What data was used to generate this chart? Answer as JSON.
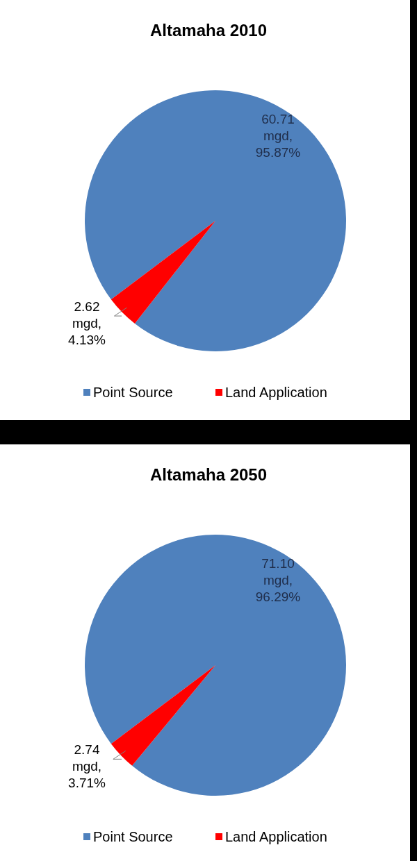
{
  "chart_data": [
    {
      "type": "pie",
      "title": "Altamaha 2010",
      "categories": [
        "Point Source",
        "Land Application"
      ],
      "values": [
        60.71,
        2.62
      ],
      "colors": [
        "#4f81bd",
        "#ff0000"
      ],
      "value_labels": [
        "60.71 mgd, 95.87%",
        "2.62 mgd, 4.13%"
      ],
      "legend": "bottom"
    },
    {
      "type": "pie",
      "title": "Altamaha 2050",
      "categories": [
        "Point Source",
        "Land Application"
      ],
      "values": [
        71.1,
        2.74
      ],
      "colors": [
        "#4f81bd",
        "#ff0000"
      ],
      "value_labels": [
        "71.10 mgd, 96.29%",
        "2.74 mgd, 3.71%"
      ],
      "legend": "bottom"
    }
  ]
}
